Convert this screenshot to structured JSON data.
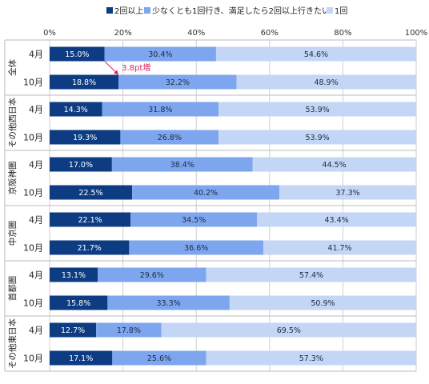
{
  "chart_data": {
    "type": "bar",
    "stacked": true,
    "orientation": "horizontal",
    "legend_position": "top",
    "xlim": [
      0,
      100
    ],
    "x_ticks": [
      "0%",
      "20%",
      "40%",
      "60%",
      "80%",
      "100%"
    ],
    "series": [
      {
        "name": "2回以上",
        "color": "#0d3c83"
      },
      {
        "name": "少なくとも1回行き、満足したら2回以上行きたい",
        "color": "#7ea6ee"
      },
      {
        "name": "1回",
        "color": "#c4d6f5"
      }
    ],
    "groups": [
      {
        "name": "全体",
        "rows": [
          {
            "label": "4月",
            "values": [
              15.0,
              30.4,
              54.6
            ],
            "labels": [
              "15.0%",
              "30.4%",
              "54.6%"
            ]
          },
          {
            "label": "10月",
            "values": [
              18.8,
              32.2,
              48.9
            ],
            "labels": [
              "18.8%",
              "32.2%",
              "48.9%"
            ]
          }
        ]
      },
      {
        "name": "その他西日本",
        "rows": [
          {
            "label": "4月",
            "values": [
              14.3,
              31.8,
              53.9
            ],
            "labels": [
              "14.3%",
              "31.8%",
              "53.9%"
            ]
          },
          {
            "label": "10月",
            "values": [
              19.3,
              26.8,
              53.9
            ],
            "labels": [
              "19.3%",
              "26.8%",
              "53.9%"
            ]
          }
        ]
      },
      {
        "name": "京阪神圏",
        "rows": [
          {
            "label": "4月",
            "values": [
              17.0,
              38.4,
              44.5
            ],
            "labels": [
              "17.0%",
              "38.4%",
              "44.5%"
            ]
          },
          {
            "label": "10月",
            "values": [
              22.5,
              40.2,
              37.3
            ],
            "labels": [
              "22.5%",
              "40.2%",
              "37.3%"
            ]
          }
        ]
      },
      {
        "name": "中京圏",
        "rows": [
          {
            "label": "4月",
            "values": [
              22.1,
              34.5,
              43.4
            ],
            "labels": [
              "22.1%",
              "34.5%",
              "43.4%"
            ]
          },
          {
            "label": "10月",
            "values": [
              21.7,
              36.6,
              41.7
            ],
            "labels": [
              "21.7%",
              "36.6%",
              "41.7%"
            ]
          }
        ]
      },
      {
        "name": "首都圏",
        "rows": [
          {
            "label": "4月",
            "values": [
              13.1,
              29.6,
              57.4
            ],
            "labels": [
              "13.1%",
              "29.6%",
              "57.4%"
            ]
          },
          {
            "label": "10月",
            "values": [
              15.8,
              33.3,
              50.9
            ],
            "labels": [
              "15.8%",
              "33.3%",
              "50.9%"
            ]
          }
        ]
      },
      {
        "name": "その他東日本",
        "rows": [
          {
            "label": "4月",
            "values": [
              12.7,
              17.8,
              69.5
            ],
            "labels": [
              "12.7%",
              "17.8%",
              "69.5%"
            ]
          },
          {
            "label": "10月",
            "values": [
              17.1,
              25.6,
              57.3
            ],
            "labels": [
              "17.1%",
              "25.6%",
              "57.3%"
            ]
          }
        ]
      }
    ],
    "annotation": {
      "text": "3.8pt増",
      "color": "#e0245e"
    }
  }
}
